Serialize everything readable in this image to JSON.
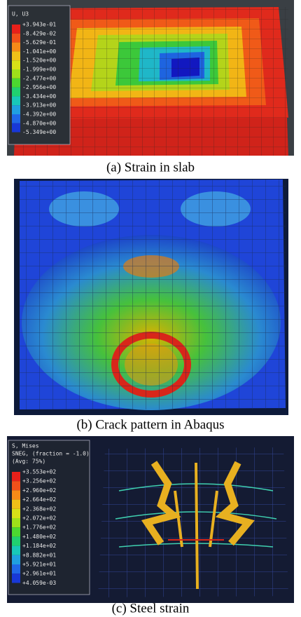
{
  "panels": [
    {
      "legend": {
        "title": [
          "U, U3"
        ],
        "values": [
          "+3.943e-01",
          "-8.429e-02",
          "-5.629e-01",
          "-1.041e+00",
          "-1.520e+00",
          "-1.999e+00",
          "-2.477e+00",
          "-2.956e+00",
          "-3.434e+00",
          "-3.913e+00",
          "-4.392e+00",
          "-4.870e+00",
          "-5.349e+00"
        ]
      },
      "caption": "(a) Strain in slab"
    },
    {
      "caption": "(b) Crack pattern in Abaqus"
    },
    {
      "legend": {
        "title": [
          "S, Mises",
          "SNEG, (fraction = -1.0)",
          "(Avg: 75%)"
        ],
        "values": [
          "+3.553e+02",
          "+3.256e+02",
          "+2.960e+02",
          "+2.664e+02",
          "+2.368e+02",
          "+2.072e+02",
          "+1.776e+02",
          "+1.480e+02",
          "+1.184e+02",
          "+8.882e+01",
          "+5.921e+01",
          "+2.961e+01",
          "+4.059e-03"
        ]
      },
      "caption": "(c) Steel strain"
    }
  ]
}
